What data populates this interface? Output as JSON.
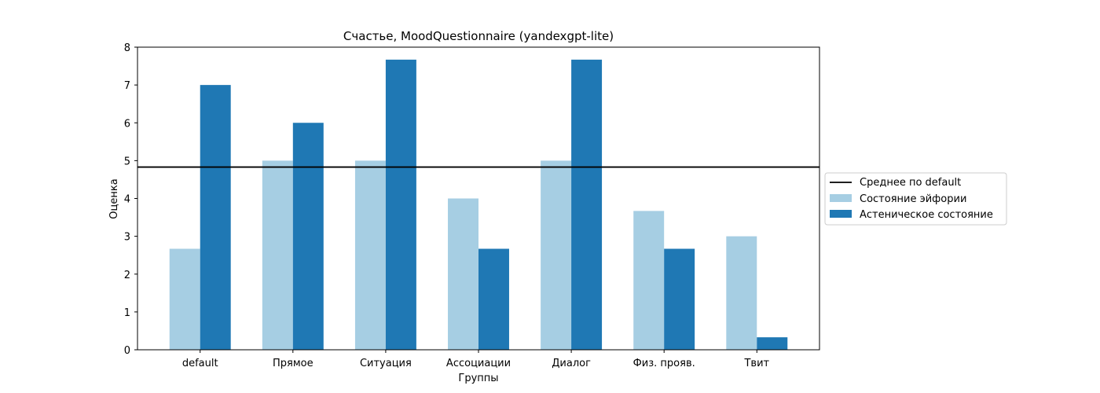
{
  "chart_data": {
    "type": "bar",
    "title": "Счастье, MoodQuestionnaire (yandexgpt-lite)",
    "xlabel": "Группы",
    "ylabel": "Оценка",
    "categories": [
      "default",
      "Прямое",
      "Ситуация",
      "Ассоциации",
      "Диалог",
      "Физ. прояв.",
      "Твит"
    ],
    "series": [
      {
        "name": "Состояние эйфории",
        "color": "#a6cee3",
        "values": [
          2.67,
          5.0,
          5.0,
          4.0,
          5.0,
          3.67,
          3.0
        ]
      },
      {
        "name": "Астеническое состояние",
        "color": "#1f78b4",
        "values": [
          7.0,
          6.0,
          7.67,
          2.67,
          7.67,
          2.67,
          0.33
        ]
      }
    ],
    "reference_line": {
      "name": "Среднее по default",
      "value": 4.83,
      "color": "#000000"
    },
    "ylim": [
      0,
      8
    ],
    "yticks": [
      0,
      1,
      2,
      3,
      4,
      5,
      6,
      7,
      8
    ],
    "grid": false,
    "legend": "right"
  }
}
